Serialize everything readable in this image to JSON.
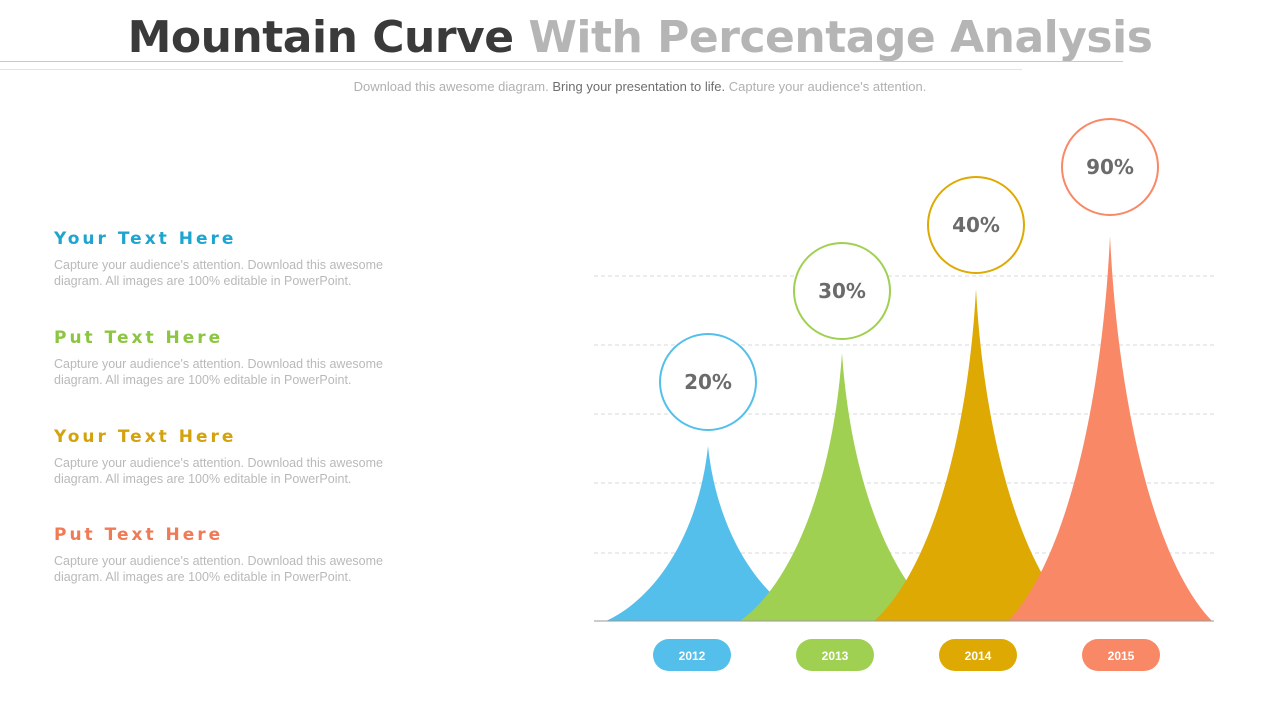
{
  "header": {
    "title_dark": "Mountain Curve",
    "title_light": "With Percentage Analysis",
    "subtitle_a": "Download this awesome diagram.",
    "subtitle_b": "Bring your presentation to life.",
    "subtitle_c": "Capture your audience's attention."
  },
  "text_items": [
    {
      "heading": "Your Text Here",
      "line1": "Capture your audience's  attention. Download this awesome",
      "line2": "diagram. All images are 100% editable in PowerPoint.",
      "color": "#1ea5cf"
    },
    {
      "heading": "Put Text Here",
      "line1": "Capture your audience's  attention. Download this awesome",
      "line2": "diagram. All images are 100% editable in PowerPoint.",
      "color": "#8cc53f"
    },
    {
      "heading": "Your Text Here",
      "line1": "Capture your audience's  attention. Download this awesome",
      "line2": "diagram. All images are 100% editable in PowerPoint.",
      "color": "#d4a20c"
    },
    {
      "heading": "Put Text Here",
      "line1": "Capture your audience's  attention. Download this awesome",
      "line2": "diagram. All images are 100% editable in PowerPoint.",
      "color": "#f07a55"
    }
  ],
  "chart_data": {
    "type": "area",
    "categories": [
      "2012",
      "2013",
      "2014",
      "2015"
    ],
    "values": [
      20,
      30,
      40,
      90
    ],
    "value_labels": [
      "20%",
      "30%",
      "40%",
      "90%"
    ],
    "colors": [
      "#53bfea",
      "#a0d052",
      "#dea902",
      "#f98866"
    ],
    "grid": true
  }
}
